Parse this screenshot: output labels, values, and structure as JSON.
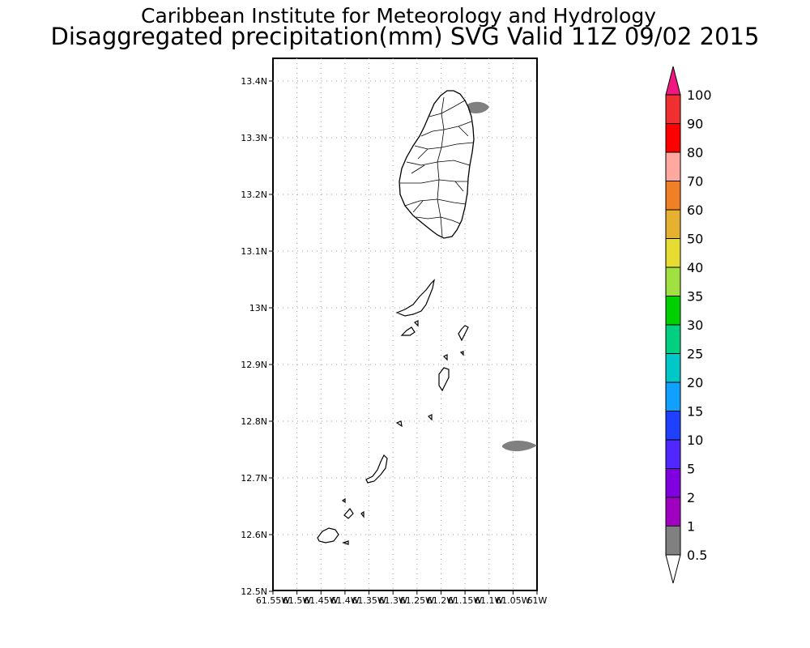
{
  "header": {
    "title": "Caribbean Institute for Meteorology and Hydrology",
    "subtitle": "Disaggregated precipitation(mm) SVG Valid 11Z 09/02 2015"
  },
  "map": {
    "region": "St. Vincent and the Grenadines",
    "lat_range": [
      12.5,
      13.44
    ],
    "lon_range": [
      -61.55,
      -61.0
    ],
    "y_ticks": [
      "13.4N",
      "13.3N",
      "13.2N",
      "13.1N",
      "13N",
      "12.9N",
      "12.8N",
      "12.7N",
      "12.6N",
      "12.5N"
    ],
    "x_ticks": [
      "61.55W",
      "61.5W",
      "61.45W",
      "61.4W",
      "61.35W",
      "61.3W",
      "61.25W",
      "61.2W",
      "61.15W",
      "61.1W",
      "61.05W",
      "61W"
    ],
    "rain_patches": [
      {
        "name": "northeast-coast-patch",
        "lon": -61.1,
        "lat": 13.355,
        "value_range": "0.5-1",
        "color": "#808080"
      },
      {
        "name": "east-offshore-patch",
        "lon": -61.03,
        "lat": 12.757,
        "value_range": "0.5-1",
        "color": "#808080"
      }
    ]
  },
  "colorbar": {
    "labels": [
      "0.5",
      "1",
      "2",
      "5",
      "10",
      "15",
      "20",
      "25",
      "30",
      "35",
      "40",
      "50",
      "60",
      "70",
      "80",
      "90",
      "100"
    ],
    "colors": [
      "#808080",
      "#a000c0",
      "#8000e0",
      "#5028ff",
      "#2040ff",
      "#10a0ff",
      "#00c8c8",
      "#00d080",
      "#00d000",
      "#a0e040",
      "#e6dc32",
      "#e6b030",
      "#f08028",
      "#ffa8a0",
      "#ff0000",
      "#f03030",
      "#f01880"
    ],
    "below_color": "#ffffff",
    "above_color": "#f01880"
  }
}
